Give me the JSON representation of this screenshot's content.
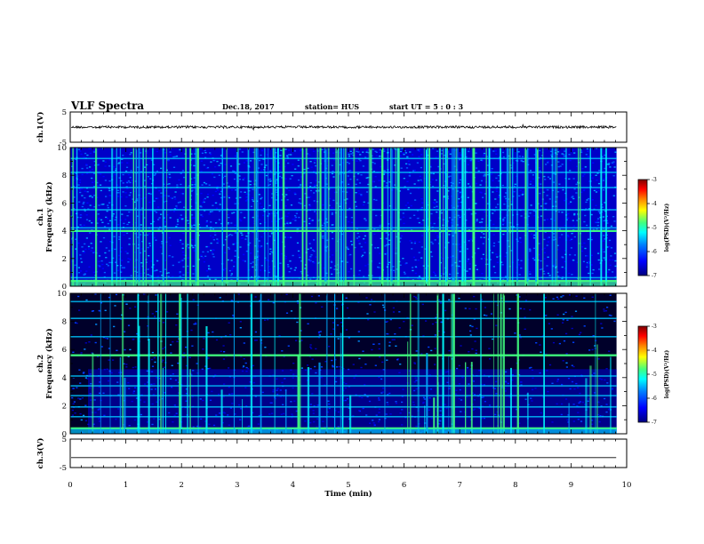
{
  "header": {
    "title": "VLF Spectra",
    "date": "Dec.18, 2017",
    "station": "station= HUS",
    "start_ut": "start  UT  =   5 : 0  : 3"
  },
  "chart_data": [
    {
      "type": "line",
      "panel": "ch1-waveform",
      "ylabel": "ch.1(V)",
      "ylim": [
        -5,
        5
      ],
      "yticks": [
        "5",
        "-5"
      ],
      "xlim": [
        0,
        10
      ],
      "series": [
        {
          "level": 0.0
        }
      ],
      "colors": {
        "trace": "#000000"
      }
    },
    {
      "type": "heatmap",
      "panel": "ch1-spectrogram",
      "ylabel": "ch.1",
      "ylabel2": "Frequency  (kHz)",
      "ylim": [
        0,
        10
      ],
      "yticks": [
        "0",
        "2",
        "4",
        "6",
        "8",
        "10"
      ],
      "xlim": [
        0,
        10
      ],
      "horizontal_lines_khz": [
        0.4,
        0.6,
        4.0,
        4.2,
        5.5,
        7.1,
        8.2,
        9.2
      ],
      "colorbar": {
        "ticks": [
          "-3",
          "-4",
          "-5",
          "-6",
          "-7"
        ],
        "label": "log(PSD)(V²/Hz)",
        "range": [
          -7,
          -3
        ]
      }
    },
    {
      "type": "heatmap",
      "panel": "ch2-spectrogram",
      "ylabel": "ch.2",
      "ylabel2": "Frequency  (kHz)",
      "ylim": [
        0,
        10
      ],
      "yticks": [
        "0",
        "2",
        "4",
        "6",
        "8",
        "10"
      ],
      "xlim": [
        0,
        10
      ],
      "horizontal_lines_khz": [
        0.4,
        1.2,
        1.9,
        2.7,
        3.4,
        4.1,
        5.6,
        6.9,
        8.2,
        9.4
      ],
      "colorbar": {
        "ticks": [
          "-3",
          "-4",
          "-5",
          "-6",
          "-7"
        ],
        "label": "log(PSD)(V²/Hz)",
        "range": [
          -7,
          -3
        ]
      }
    },
    {
      "type": "line",
      "panel": "ch3-waveform",
      "ylabel": "ch.3(V)",
      "ylim": [
        -5,
        5
      ],
      "yticks": [
        "5",
        "-5"
      ],
      "xlim": [
        0,
        10
      ],
      "series": [
        {
          "level": -1.5
        }
      ],
      "colors": {
        "trace": "#000000"
      }
    }
  ],
  "xaxis": {
    "label": "Time  (min)",
    "ticks": [
      "0",
      "1",
      "2",
      "3",
      "4",
      "5",
      "6",
      "7",
      "8",
      "9",
      "10"
    ]
  },
  "colormap": [
    "#00007f",
    "#0000ff",
    "#007fff",
    "#00ffff",
    "#40ff80",
    "#ffff00",
    "#ff7f00",
    "#ff0000",
    "#7f0000"
  ]
}
